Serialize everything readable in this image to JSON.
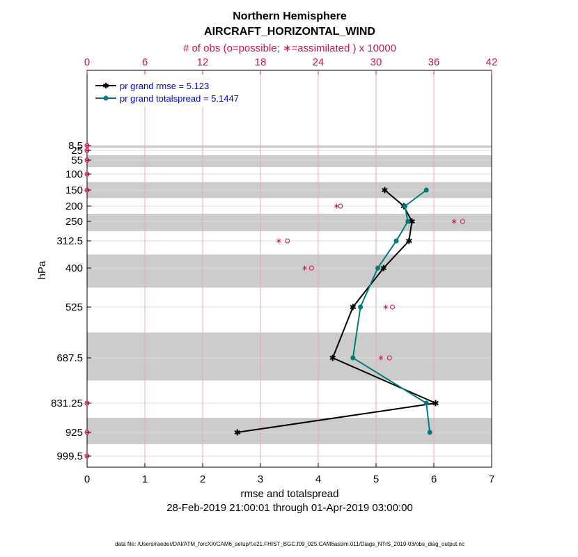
{
  "chart_data": {
    "type": "line",
    "title_line1": "Northern Hemisphere",
    "title_line2": "AIRCRAFT_HORIZONTAL_WIND",
    "top_axis_label": "# of obs (o=possible; ∗=assimilated ) x 10000",
    "xlabel": "rmse and totalspread",
    "ylabel": "hPa",
    "date_range": "28-Feb-2019 21:00:01 through 01-Apr-2019 03:00:00",
    "footnote": "data file: /Users/raeder/DAI/ATM_forcXX/CAM6_setup/f.e21.FHIST_BGC.f09_025.CAM6assim.011/Diags_NTrS_2019-03/obs_diag_output.nc",
    "xlim": [
      0,
      7
    ],
    "x_ticks": [
      "0",
      "1",
      "2",
      "3",
      "4",
      "5",
      "6",
      "7"
    ],
    "top_xlim": [
      0,
      42
    ],
    "top_ticks": [
      "0",
      "6",
      "12",
      "18",
      "24",
      "30",
      "36",
      "42"
    ],
    "levels": [
      8.5,
      25,
      55,
      100,
      150,
      200,
      250,
      312.5,
      400,
      525,
      687.5,
      831.25,
      925,
      999.5
    ],
    "level_labels": [
      "8.5",
      "25",
      "55",
      "100",
      "150",
      "200",
      "250",
      "312.5",
      "400",
      "525",
      "687.5",
      "831.25",
      "925",
      "999.5"
    ],
    "series": [
      {
        "name": "pr grand rmse = 5.123",
        "color": "#000000",
        "marker": "star",
        "levels": [
          150,
          200,
          250,
          312.5,
          400,
          525,
          687.5,
          831.25,
          925
        ],
        "values": [
          5.15,
          5.48,
          5.62,
          5.57,
          5.13,
          4.6,
          4.25,
          6.03,
          2.6
        ]
      },
      {
        "name": "pr grand totalspread = 5.1447",
        "color": "#007a7a",
        "marker": "circle",
        "levels": [
          150,
          200,
          250,
          312.5,
          400,
          525,
          687.5,
          831.25,
          925
        ],
        "values": [
          5.87,
          5.5,
          5.55,
          5.35,
          5.03,
          4.73,
          4.6,
          5.87,
          5.93
        ]
      }
    ],
    "obs_possible": {
      "levels": [
        8.5,
        25,
        55,
        100,
        150,
        200,
        250,
        312.5,
        400,
        525,
        687.5,
        831.25,
        925,
        999.5
      ],
      "values": [
        0,
        0,
        0,
        0,
        0,
        26.3,
        39.0,
        20.8,
        23.3,
        31.7,
        31.4,
        0,
        0,
        0
      ]
    },
    "obs_assimilated": {
      "levels": [
        8.5,
        25,
        55,
        100,
        150,
        200,
        250,
        312.5,
        400,
        525,
        687.5,
        831.25,
        925,
        999.5
      ],
      "values": [
        0,
        0,
        0,
        0,
        0,
        25.9,
        38.1,
        19.9,
        22.6,
        31.0,
        30.5,
        0,
        0,
        0
      ]
    },
    "colors": {
      "obs": "#cc1155",
      "band": "#cccccc",
      "grid": "#dddddd",
      "top_grid": "#e8a7bd"
    }
  }
}
